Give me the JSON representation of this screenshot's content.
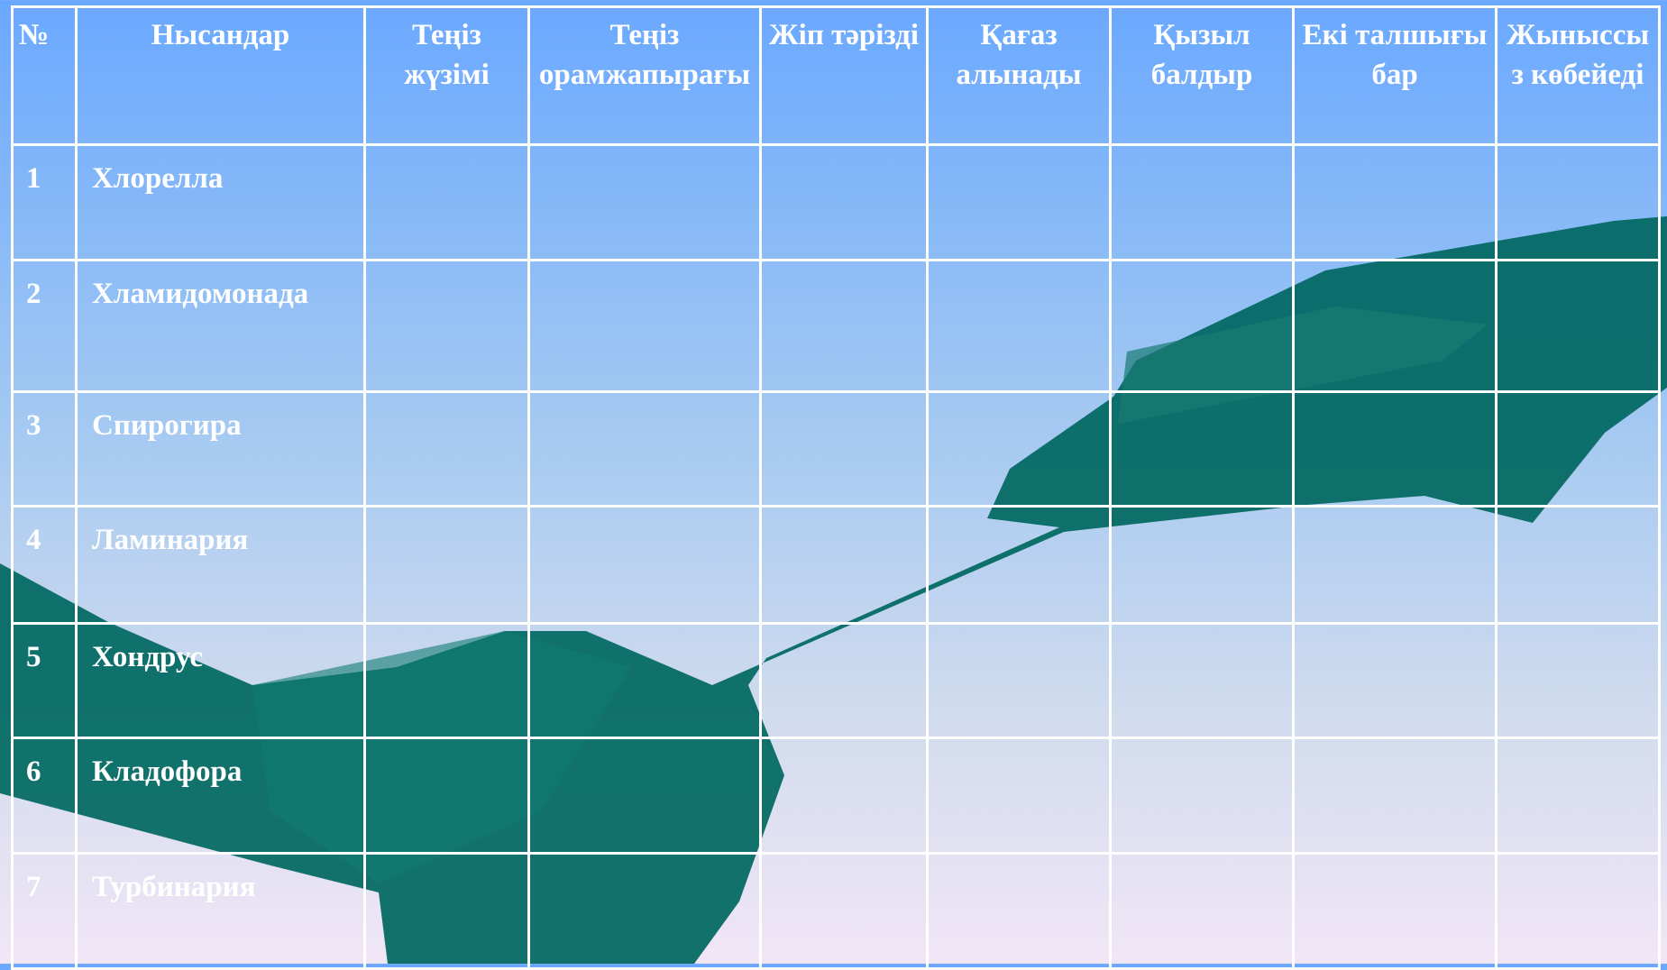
{
  "table": {
    "header": [
      "№",
      "Нысандар",
      "Теңіз жүзімі",
      "Теңіз орамжапырағы",
      "Жіп тәрізді",
      "Қағаз алынады",
      "Қызыл балдыр",
      "Екі талшығы бар",
      "Жыныссыз көбейеді"
    ],
    "rows": [
      [
        "1",
        "Хлорелла"
      ],
      [
        "2",
        "Хламидомонада"
      ],
      [
        "3",
        "Спирогира"
      ],
      [
        "4",
        "Ламинария"
      ],
      [
        "5",
        "Хондрус"
      ],
      [
        "6",
        "Кладофора"
      ],
      [
        "7",
        "Турбинария"
      ]
    ]
  }
}
